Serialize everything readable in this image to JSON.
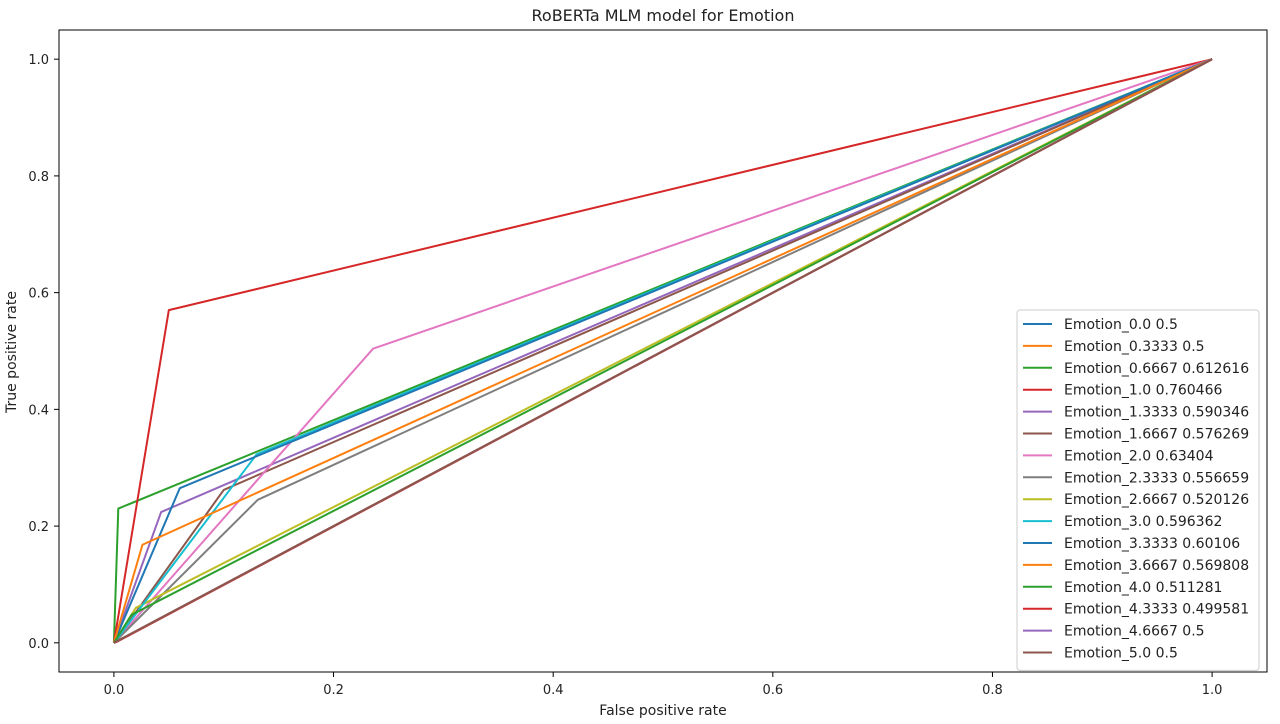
{
  "chart_data": {
    "type": "line",
    "title": "RoBERTa MLM model for Emotion",
    "xlabel": "False positive rate",
    "ylabel": "True positive rate",
    "xlim": [
      -0.05,
      1.05
    ],
    "ylim": [
      -0.05,
      1.05
    ],
    "xticks": [
      "0.0",
      "0.2",
      "0.4",
      "0.6",
      "0.8",
      "1.0"
    ],
    "yticks": [
      "0.0",
      "0.2",
      "0.4",
      "0.6",
      "0.8",
      "1.0"
    ],
    "xtick_values": [
      0,
      0.2,
      0.4,
      0.6,
      0.8,
      1.0
    ],
    "ytick_values": [
      0,
      0.2,
      0.4,
      0.6,
      0.8,
      1.0
    ],
    "legend_position": "lower-right",
    "series": [
      {
        "name": "Emotion_0.0 0.5",
        "color": "#1f77b4",
        "x": [
          0,
          0,
          1
        ],
        "y": [
          0,
          0,
          1
        ]
      },
      {
        "name": "Emotion_0.3333 0.5",
        "color": "#ff7f0e",
        "x": [
          0,
          0,
          1
        ],
        "y": [
          0,
          0,
          1
        ]
      },
      {
        "name": "Emotion_0.6667 0.612616",
        "color": "#2ca02c",
        "x": [
          0,
          0.004,
          1
        ],
        "y": [
          0,
          0.23,
          1
        ]
      },
      {
        "name": "Emotion_1.0 0.760466",
        "color": "#d62728",
        "x": [
          0,
          0.05,
          1
        ],
        "y": [
          0,
          0.57,
          1
        ]
      },
      {
        "name": "Emotion_1.3333 0.590346",
        "color": "#9467bd",
        "x": [
          0,
          0.043,
          1
        ],
        "y": [
          0,
          0.224,
          1
        ]
      },
      {
        "name": "Emotion_1.6667 0.576269",
        "color": "#8c564b",
        "x": [
          0,
          0.1,
          1
        ],
        "y": [
          0,
          0.262,
          1
        ]
      },
      {
        "name": "Emotion_2.0 0.63404",
        "color": "#e377c2",
        "x": [
          0,
          0.236,
          1
        ],
        "y": [
          0,
          0.504,
          1
        ]
      },
      {
        "name": "Emotion_2.3333 0.556659",
        "color": "#7f7f7f",
        "x": [
          0,
          0.131,
          1
        ],
        "y": [
          0,
          0.245,
          1
        ]
      },
      {
        "name": "Emotion_2.6667 0.520126",
        "color": "#bcbd22",
        "x": [
          0,
          0.02,
          1
        ],
        "y": [
          0,
          0.06,
          1
        ]
      },
      {
        "name": "Emotion_3.0 0.596362",
        "color": "#17becf",
        "x": [
          0,
          0.13,
          1
        ],
        "y": [
          0,
          0.323,
          1
        ]
      },
      {
        "name": "Emotion_3.3333 0.60106",
        "color": "#1f77b4",
        "x": [
          0,
          0.06,
          1
        ],
        "y": [
          0,
          0.265,
          1
        ]
      },
      {
        "name": "Emotion_3.6667 0.569808",
        "color": "#ff7f0e",
        "x": [
          0,
          0.026,
          1
        ],
        "y": [
          0,
          0.168,
          1
        ]
      },
      {
        "name": "Emotion_4.0 0.511281",
        "color": "#2ca02c",
        "x": [
          0,
          0.016,
          1
        ],
        "y": [
          0,
          0.048,
          1
        ]
      },
      {
        "name": "Emotion_4.3333 0.499581",
        "color": "#d62728",
        "x": [
          0,
          0.003,
          1
        ],
        "y": [
          0,
          0.002,
          1
        ]
      },
      {
        "name": "Emotion_4.6667 0.5",
        "color": "#9467bd",
        "x": [
          0,
          0,
          1
        ],
        "y": [
          0,
          0,
          1
        ]
      },
      {
        "name": "Emotion_5.0 0.5",
        "color": "#8c564b",
        "x": [
          0,
          0,
          1
        ],
        "y": [
          0,
          0,
          1
        ]
      }
    ]
  }
}
